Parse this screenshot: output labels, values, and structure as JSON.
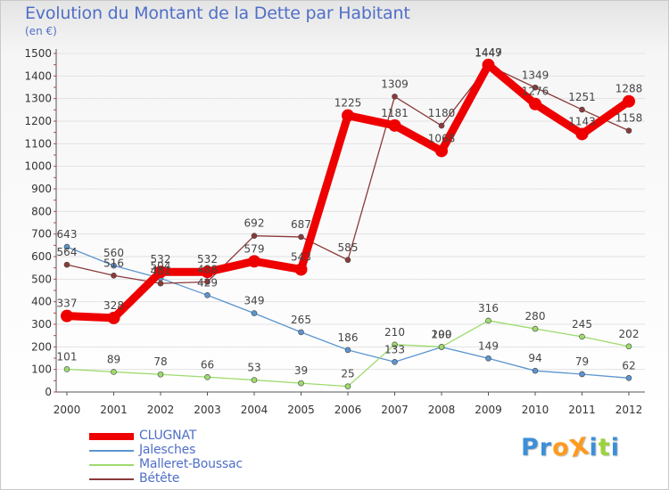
{
  "title": "Evolution du Montant de la Dette par Habitant",
  "unit": "(en €)",
  "logo": {
    "text": "ProXiti",
    "colors": [
      "#3c8fd8",
      "#3c8fd8",
      "#ff9a1e",
      "#ff9a1e",
      "#3c8fd8",
      "#9bd33b",
      "#3c8fd8"
    ]
  },
  "chart_data": {
    "type": "line",
    "title": "Evolution du Montant de la Dette par Habitant",
    "ylabel": "(en €)",
    "xlabel": "",
    "x": [
      "2000",
      "2001",
      "2002",
      "2003",
      "2004",
      "2005",
      "2006",
      "2007",
      "2008",
      "2009",
      "2010",
      "2011",
      "2012"
    ],
    "ylim": [
      0,
      1500
    ],
    "yticks": [
      0,
      100,
      200,
      300,
      400,
      500,
      600,
      700,
      800,
      900,
      1000,
      1100,
      1200,
      1300,
      1400,
      1500
    ],
    "grid": "horizontal",
    "legend_position": "bottom-left",
    "series": [
      {
        "name": "CLUGNAT",
        "color": "#ee0000",
        "values": [
          337,
          328,
          532,
          532,
          579,
          543,
          1225,
          1181,
          1068,
          1449,
          1276,
          1143,
          1288
        ]
      },
      {
        "name": "Jalesches",
        "color": "#5b95cf",
        "values": [
          643,
          560,
          504,
          429,
          349,
          265,
          186,
          133,
          199,
          149,
          94,
          79,
          62
        ]
      },
      {
        "name": "Malleret-Boussac",
        "color": "#9ddb6e",
        "values": [
          101,
          89,
          78,
          66,
          53,
          39,
          25,
          210,
          200,
          316,
          280,
          245,
          202
        ]
      },
      {
        "name": "Bétête",
        "color": "#8b3a3a",
        "values": [
          564,
          516,
          481,
          488,
          692,
          687,
          585,
          1309,
          1180,
          1447,
          1349,
          1251,
          1158
        ]
      }
    ]
  }
}
